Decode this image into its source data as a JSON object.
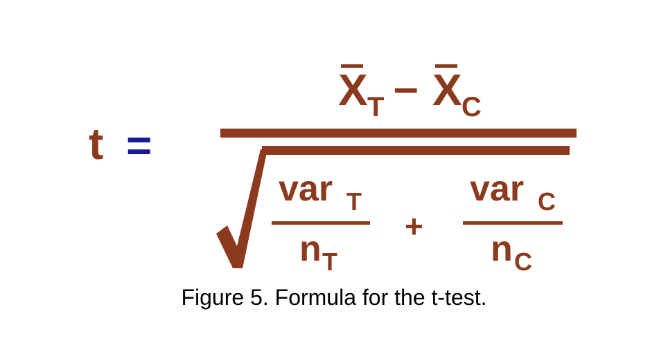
{
  "formula": {
    "lhs": "t",
    "equals": "=",
    "numerator": {
      "x1": "X",
      "x1_sub": "T",
      "minus": "–",
      "x2": "X",
      "x2_sub": "C"
    },
    "denominator": {
      "term1_top": "var",
      "term1_top_sub": "T",
      "term1_bottom": "n",
      "term1_bottom_sub": "T",
      "plus": "+",
      "term2_top": "var",
      "term2_top_sub": "C",
      "term2_bottom": "n",
      "term2_bottom_sub": "C"
    }
  },
  "caption": "Figure 5. Formula for the t-test.",
  "colors": {
    "formula": "#8b3a1e",
    "equals": "#1a1a99",
    "caption": "#000000"
  }
}
